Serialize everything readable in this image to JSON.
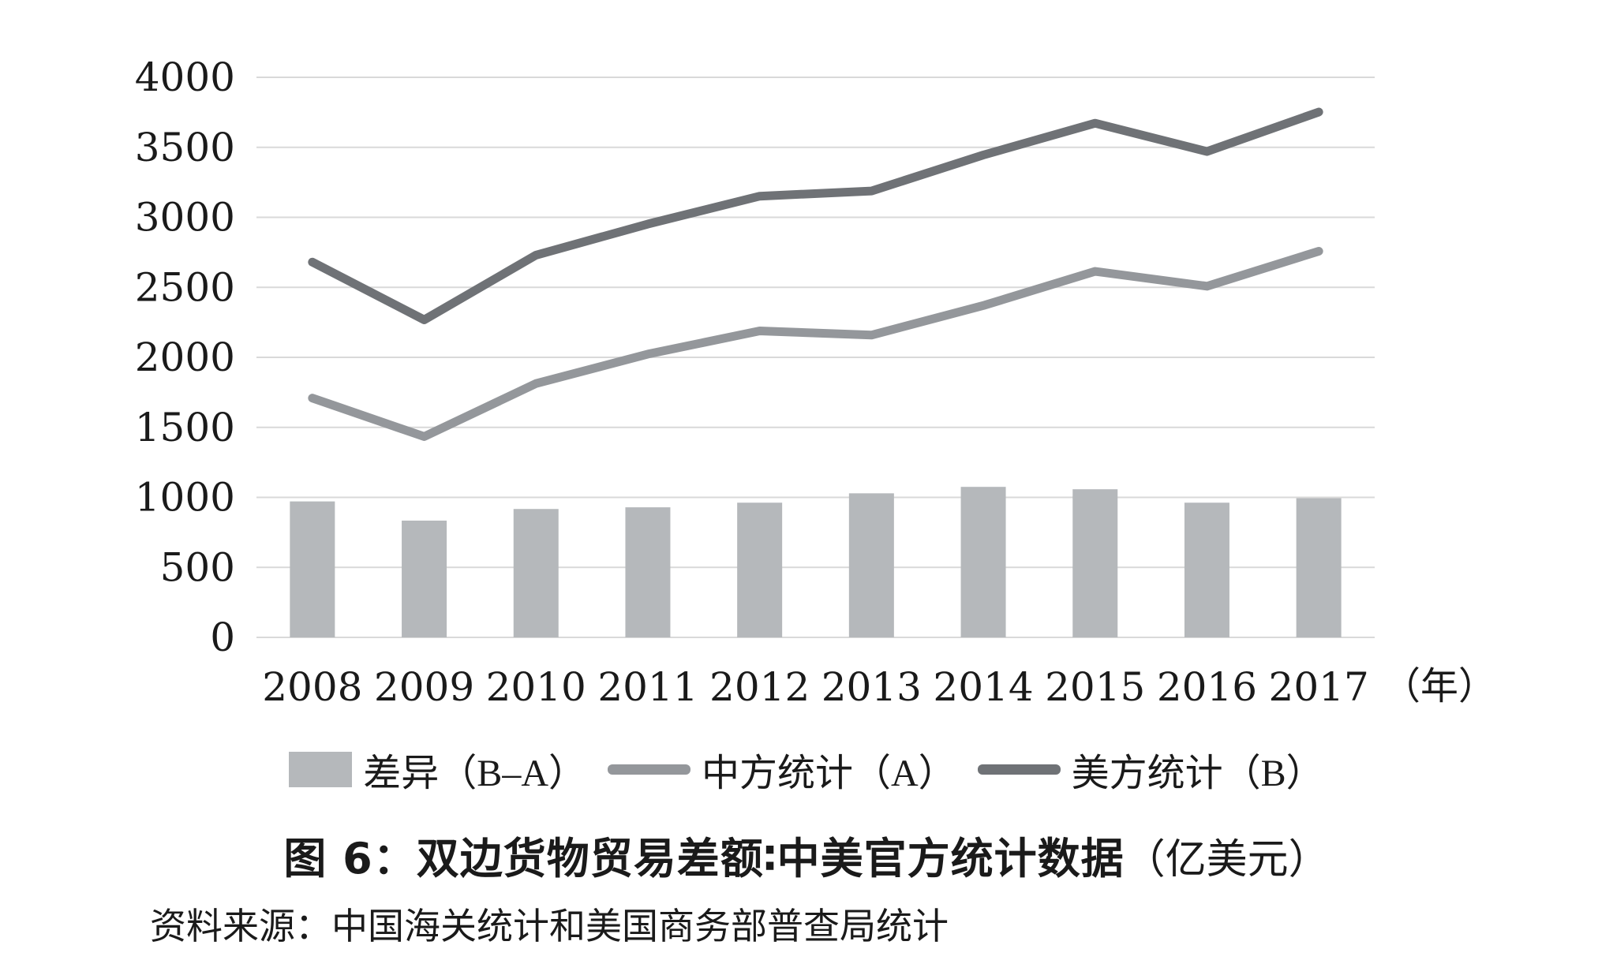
{
  "chart_data": {
    "type": "combo",
    "title": "图 6：双边货物贸易差额∶中美官方统计数据",
    "title_unit": "（亿美元）",
    "source": "资料来源：中国海关统计和美国商务部普查局统计",
    "x_unit": "（年）",
    "categories": [
      "2008",
      "2009",
      "2010",
      "2011",
      "2012",
      "2013",
      "2014",
      "2015",
      "2016",
      "2017"
    ],
    "series": [
      {
        "name": "差异（B–A）",
        "type": "bar",
        "color": "#b5b8bb",
        "values": [
          971,
          834,
          917,
          929,
          962,
          1029,
          1075,
          1058,
          962,
          994
        ]
      },
      {
        "name": "中方统计（A）",
        "type": "line",
        "color": "#94979b",
        "values": [
          1709,
          1434,
          1813,
          2023,
          2189,
          2159,
          2370,
          2614,
          2508,
          2758
        ]
      },
      {
        "name": "美方统计（B）",
        "type": "line",
        "color": "#6f7276",
        "values": [
          2680,
          2268,
          2730,
          2952,
          3151,
          3188,
          3445,
          3672,
          3470,
          3752
        ]
      }
    ],
    "ylim": [
      0,
      4000
    ],
    "ytick_step": 500,
    "yticks": [
      "0",
      "500",
      "1000",
      "1500",
      "2000",
      "2500",
      "3000",
      "3500",
      "4000"
    ],
    "grid": true,
    "grid_color": "#d9d9d9",
    "text_color": "#1a1a1a",
    "legend_position": "bottom"
  }
}
